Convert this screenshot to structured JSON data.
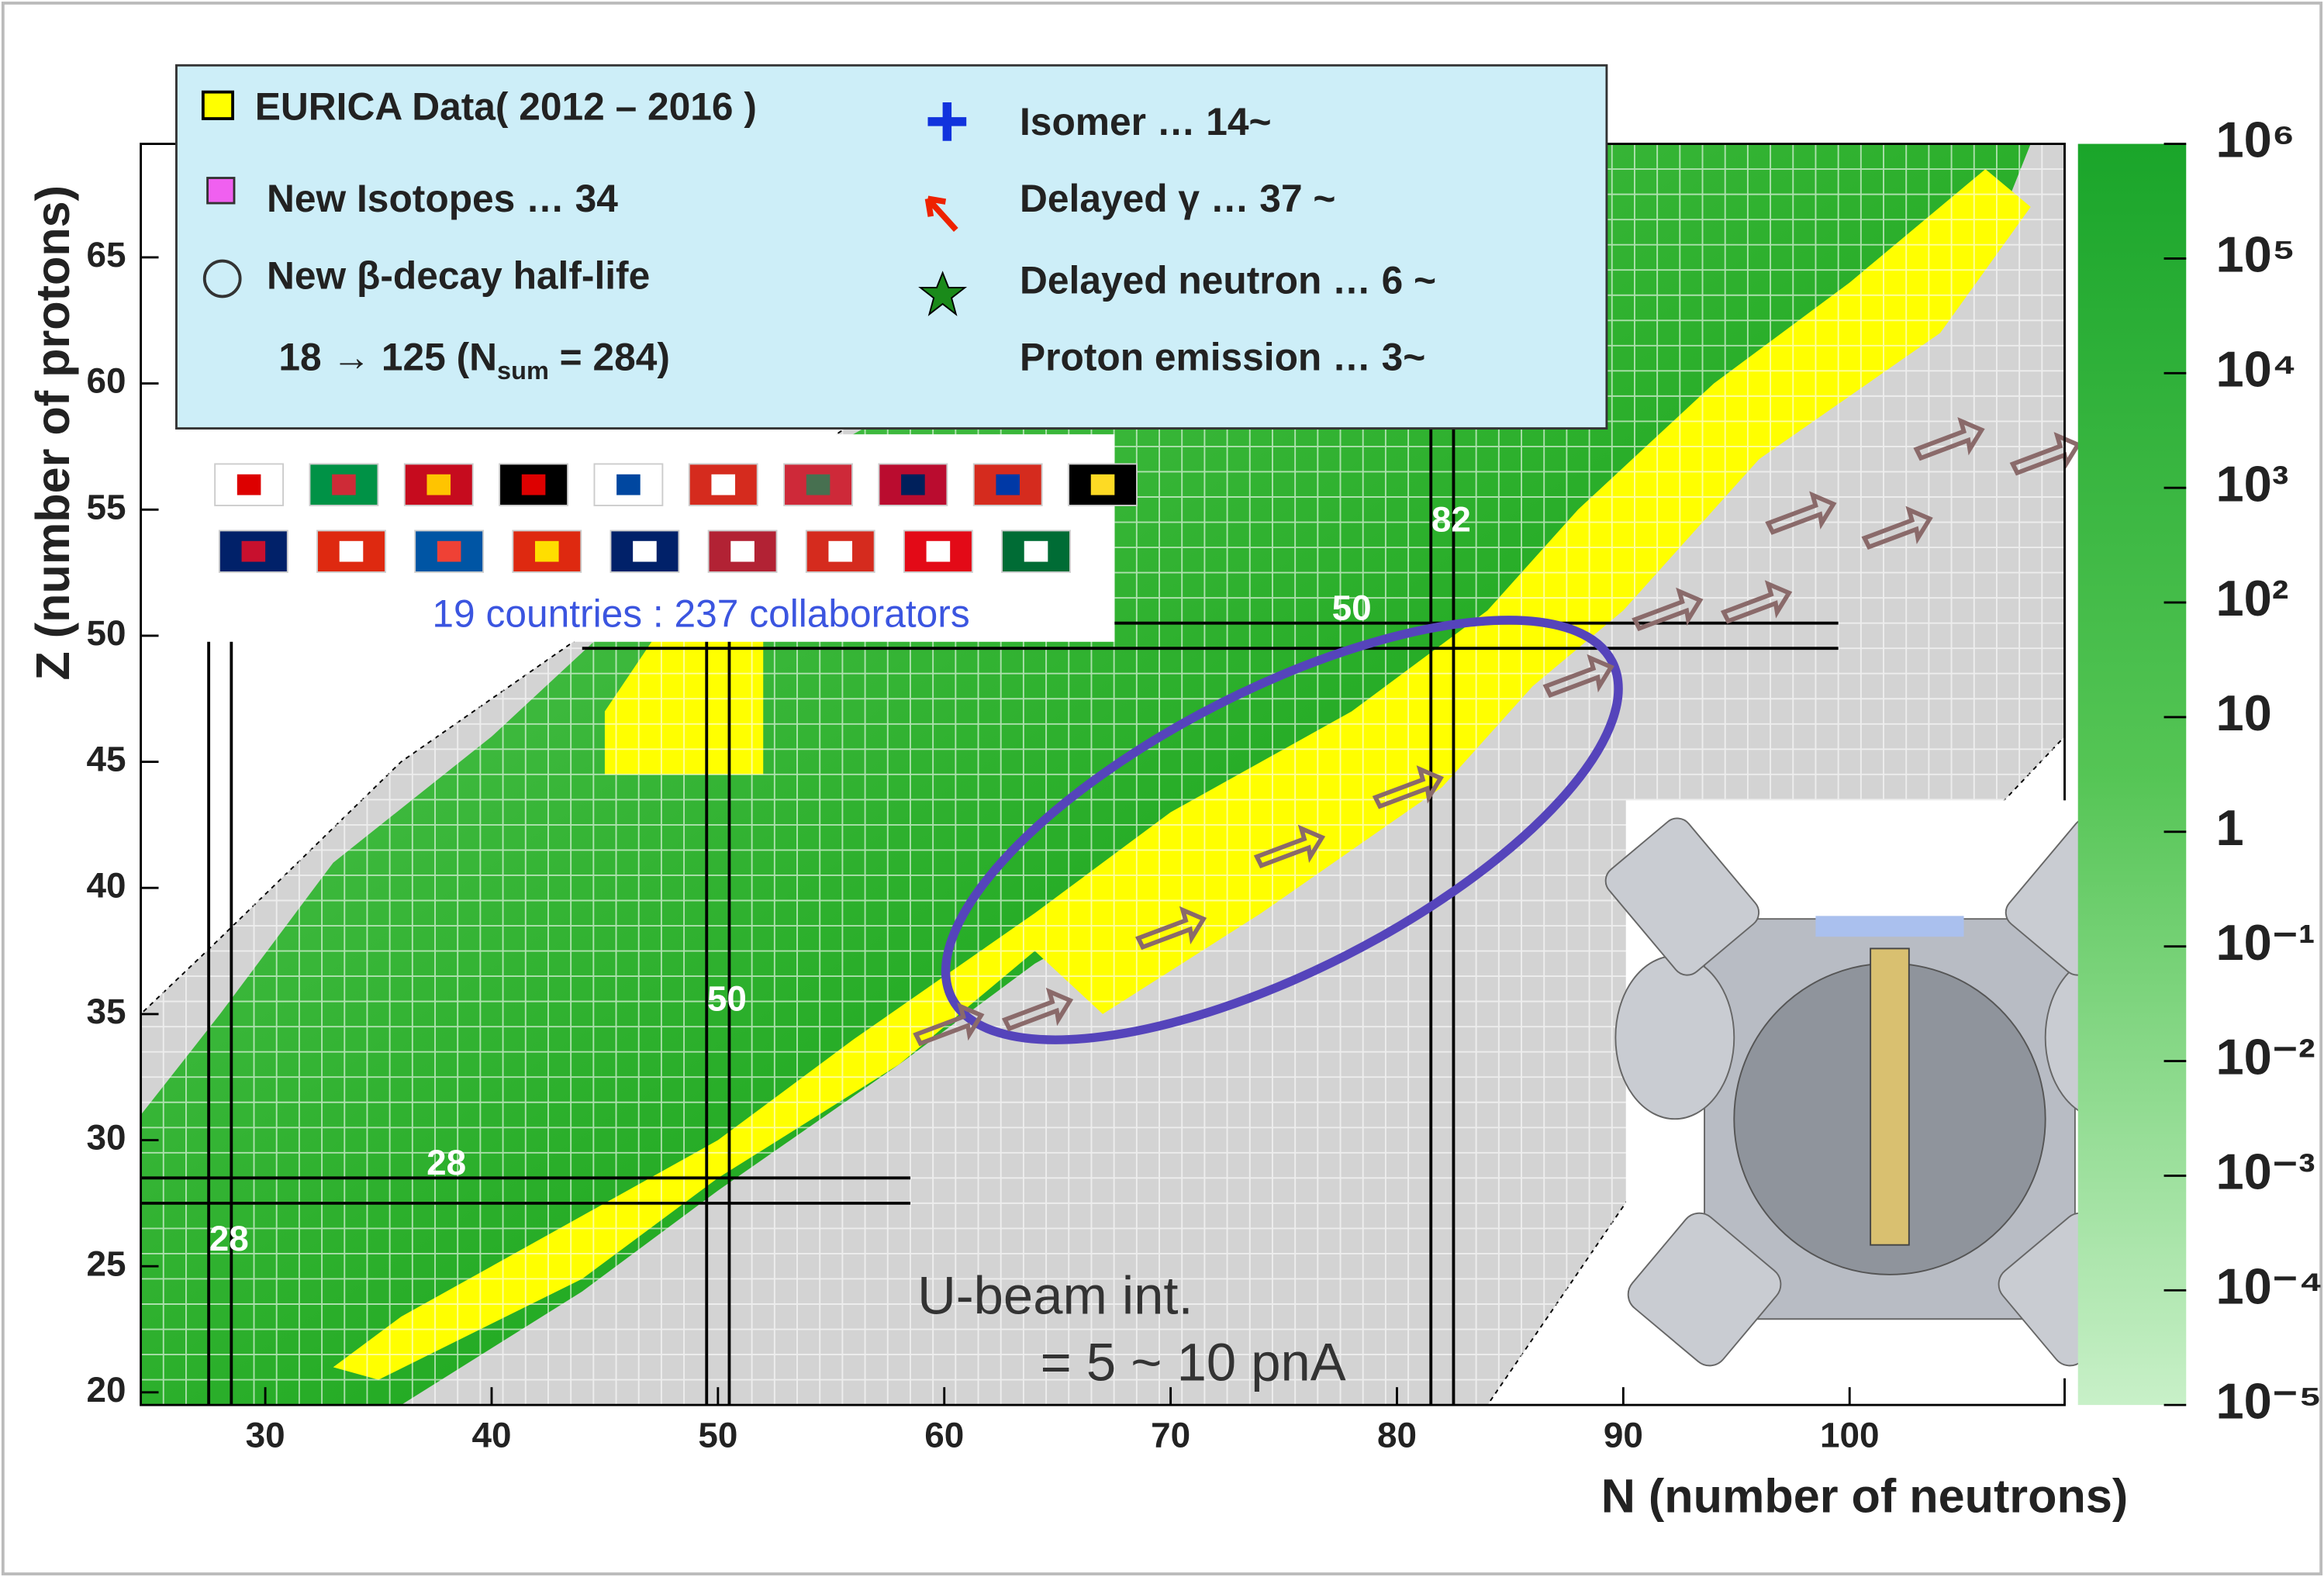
{
  "chart_data": {
    "type": "nuclide-chart",
    "xlabel": "N (number of neutrons)",
    "ylabel": "Z (number of protons)",
    "xlim": [
      24.5,
      109.5
    ],
    "ylim": [
      19.5,
      69.5
    ],
    "xticks": [
      30,
      40,
      50,
      60,
      70,
      80,
      90,
      100
    ],
    "yticks": [
      20,
      25,
      30,
      35,
      40,
      45,
      50,
      55,
      60,
      65
    ],
    "magic_numbers": {
      "N": [
        28,
        50,
        82
      ],
      "Z": [
        28,
        50
      ]
    },
    "colorbar": {
      "log": true,
      "lim": [
        1e-05,
        1000000
      ],
      "ticks": [
        {
          "value": 1000000,
          "label": "10⁶"
        },
        {
          "value": 100000,
          "label": "10⁵"
        },
        {
          "value": 10000,
          "label": "10⁴"
        },
        {
          "value": 1000,
          "label": "10³"
        },
        {
          "value": 100,
          "label": "10²"
        },
        10,
        1,
        {
          "value": 0.1,
          "label": "10⁻¹"
        },
        {
          "value": 0.01,
          "label": "10⁻²"
        },
        {
          "value": 0.001,
          "label": "10⁻³"
        },
        {
          "value": 0.0001,
          "label": "10⁻⁴"
        },
        {
          "value": 1e-05,
          "label": "10⁻⁵"
        }
      ]
    },
    "legend": {
      "eurica": "EURICA Data( 2012 – 2016 )",
      "new_isotopes": "New Isotopes … 34",
      "half_life": "New β-decay half-life",
      "half_life_count": [
        "18  →  125  (N",
        "sum",
        " = 284)"
      ],
      "isomer": "Isomer  … 14~",
      "delayed_gamma": "Delayed γ … 37 ~",
      "delayed_neutron": "Delayed neutron  … 6 ~",
      "proton_emission": "Proton emission  … 3~"
    },
    "collaboration": "19 countries : 237 collaborators",
    "beam": [
      "U-beam int.",
      "= 5 ~ 10 pnA"
    ]
  }
}
